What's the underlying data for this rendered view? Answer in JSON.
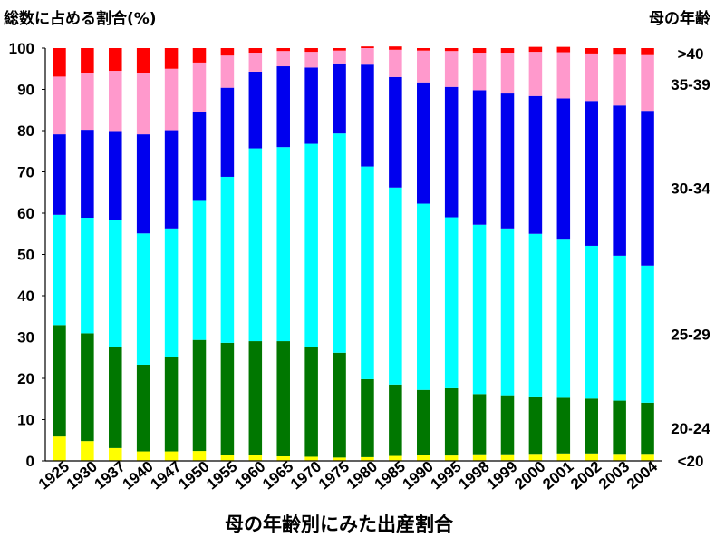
{
  "chart_data": {
    "type": "bar",
    "stacked": true,
    "title": "総数に占める割合(%)",
    "legend_title": "母の年齢",
    "xlabel": "母の年齢別にみた出産割合",
    "ylabel": "",
    "ylim": [
      0,
      100
    ],
    "yticks": [
      "0",
      "10",
      "20",
      "30",
      "40",
      "50",
      "60",
      "70",
      "80",
      "90",
      "100"
    ],
    "categories": [
      "1925",
      "1930",
      "1937",
      "1940",
      "1947",
      "1950",
      "1955",
      "1960",
      "1965",
      "1970",
      "1975",
      "1980",
      "1985",
      "1990",
      "1995",
      "1998",
      "1999",
      "2000",
      "2001",
      "2002",
      "2003",
      "2004"
    ],
    "series": [
      {
        "name": "<20",
        "color": "#ffff00",
        "values": [
          5.9,
          4.8,
          3.1,
          2.3,
          2.3,
          2.4,
          1.5,
          1.4,
          1.1,
          1.0,
          0.8,
          0.9,
          1.2,
          1.4,
          1.3,
          1.6,
          1.6,
          1.7,
          1.8,
          1.8,
          1.7,
          1.7
        ]
      },
      {
        "name": "20-24",
        "color": "#007700",
        "values": [
          27.0,
          26.1,
          24.4,
          21.0,
          22.8,
          26.9,
          27.1,
          27.6,
          27.9,
          26.5,
          25.4,
          18.9,
          17.3,
          15.8,
          16.3,
          14.6,
          14.3,
          13.7,
          13.5,
          13.3,
          12.9,
          12.4
        ]
      },
      {
        "name": "25-29",
        "color": "#00ffff",
        "values": [
          26.7,
          28.0,
          30.8,
          31.8,
          31.2,
          33.9,
          40.2,
          46.7,
          47.0,
          49.3,
          53.1,
          51.5,
          47.7,
          45.1,
          41.4,
          41.0,
          40.4,
          39.6,
          38.5,
          37.0,
          35.1,
          33.2
        ]
      },
      {
        "name": "30-34",
        "color": "#0000ee",
        "values": [
          19.5,
          21.3,
          21.6,
          24.0,
          23.8,
          21.2,
          21.6,
          18.6,
          19.6,
          18.5,
          17.0,
          24.7,
          26.8,
          29.4,
          31.6,
          32.6,
          32.7,
          33.4,
          34.0,
          35.1,
          36.4,
          37.5
        ]
      },
      {
        "name": "35-39",
        "color": "#ff99cc",
        "values": [
          14.0,
          13.8,
          14.6,
          14.8,
          14.9,
          12.1,
          7.8,
          4.6,
          3.7,
          3.8,
          3.1,
          4.0,
          6.6,
          7.7,
          8.7,
          9.1,
          9.9,
          10.7,
          11.2,
          11.5,
          12.3,
          13.5
        ]
      },
      {
        "name": ">40",
        "color": "#ff0000",
        "values": [
          6.9,
          6.0,
          5.5,
          6.1,
          5.0,
          3.5,
          1.8,
          1.1,
          0.7,
          0.9,
          0.6,
          0.4,
          0.8,
          0.6,
          0.7,
          1.1,
          1.1,
          1.2,
          1.3,
          1.3,
          1.6,
          1.7
        ]
      }
    ]
  }
}
